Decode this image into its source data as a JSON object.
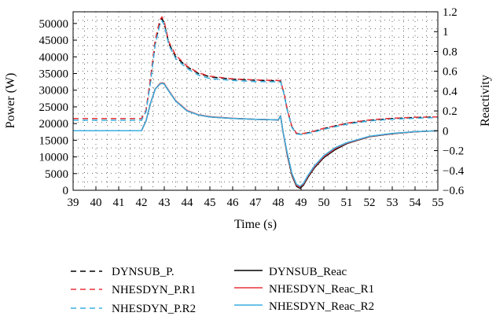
{
  "chart_data": {
    "type": "line",
    "xlabel": "Time (s)",
    "ylabel_left": "Power (W)",
    "ylabel_right": "Reactivity",
    "xlim": [
      39,
      55
    ],
    "x_ticks": [
      39,
      40,
      41,
      42,
      43,
      44,
      45,
      46,
      47,
      48,
      49,
      50,
      51,
      52,
      53,
      54,
      55
    ],
    "ylim_left": [
      0,
      53500
    ],
    "ylim_right": [
      -0.6,
      1.2
    ],
    "y_ticks_left": [
      0,
      5000,
      10000,
      15000,
      20000,
      25000,
      30000,
      35000,
      40000,
      45000,
      50000
    ],
    "y_ticks_right": [
      -0.6,
      -0.4,
      -0.2,
      0,
      0.2,
      0.4,
      0.6,
      0.8,
      1,
      1.2
    ],
    "y_tick_labels_right": [
      "−0.6",
      "−0.4",
      "−0.2",
      "0",
      "0.2",
      "0.4",
      "0.6",
      "0.8",
      "1",
      "1.2"
    ],
    "grid": "dotted",
    "legend_position": "bottom",
    "series": [
      {
        "name": "DYNSUB_P.",
        "axis": "left",
        "style": "dashed",
        "color": "#000000",
        "x": [
          39,
          42,
          42.2,
          42.4,
          42.6,
          42.8,
          42.9,
          43.0,
          43.2,
          43.5,
          44,
          44.5,
          45,
          46,
          47,
          48,
          48.1,
          48.25,
          48.4,
          48.6,
          48.8,
          49.0,
          49.5,
          50,
          51,
          52,
          53,
          54,
          55
        ],
        "y": [
          21500,
          21500,
          24000,
          33000,
          44000,
          50000,
          51500,
          50000,
          44000,
          40000,
          37000,
          35000,
          34000,
          33300,
          33000,
          32800,
          32800,
          29000,
          24000,
          19000,
          17000,
          16800,
          17500,
          18500,
          20000,
          21000,
          21500,
          21800,
          22000
        ]
      },
      {
        "name": "NHESDYN_P.R1",
        "axis": "left",
        "style": "dashed",
        "color": "#e8333a",
        "x": [
          39,
          42,
          42.2,
          42.4,
          42.6,
          42.8,
          42.9,
          43.0,
          43.2,
          43.5,
          44,
          44.5,
          45,
          46,
          47,
          48,
          48.1,
          48.25,
          48.4,
          48.6,
          48.8,
          49.0,
          49.5,
          50,
          51,
          52,
          53,
          54,
          55
        ],
        "y": [
          21500,
          21500,
          24000,
          34000,
          45000,
          51000,
          52000,
          50500,
          44500,
          40500,
          37200,
          35200,
          34200,
          33400,
          33100,
          32900,
          32900,
          29100,
          24100,
          19100,
          17100,
          16900,
          17600,
          18600,
          20100,
          21100,
          21600,
          21900,
          22000
        ]
      },
      {
        "name": "NHESDYN_P.R2",
        "axis": "left",
        "style": "dashed",
        "color": "#3aaee0",
        "x": [
          39,
          42,
          42.2,
          42.4,
          42.6,
          42.8,
          42.9,
          43.0,
          43.2,
          43.5,
          44,
          44.5,
          45,
          46,
          47,
          48,
          48.1,
          48.25,
          48.4,
          48.6,
          48.8,
          49.0,
          49.5,
          50,
          51,
          52,
          53,
          54,
          55
        ],
        "y": [
          21000,
          21000,
          23500,
          32500,
          43500,
          49500,
          50800,
          49500,
          43500,
          39500,
          36500,
          34500,
          33500,
          32900,
          32600,
          32500,
          32500,
          28800,
          23800,
          18800,
          16900,
          16700,
          17300,
          18300,
          19800,
          20800,
          21300,
          21600,
          21800
        ]
      },
      {
        "name": "DYNSUB_Reac",
        "axis": "right",
        "style": "solid",
        "color": "#000000",
        "x": [
          39,
          42,
          42.2,
          42.4,
          42.6,
          42.8,
          42.9,
          43.0,
          43.2,
          43.5,
          44,
          44.5,
          45,
          46,
          47,
          48,
          48.1,
          48.15,
          48.2,
          48.4,
          48.6,
          48.8,
          48.95,
          49.1,
          49.3,
          49.6,
          50,
          50.5,
          51,
          52,
          53,
          54,
          55
        ],
        "y": [
          0,
          0,
          0.1,
          0.28,
          0.42,
          0.47,
          0.48,
          0.47,
          0.4,
          0.3,
          0.2,
          0.16,
          0.14,
          0.125,
          0.115,
          0.11,
          0.15,
          0.08,
          0.0,
          -0.25,
          -0.45,
          -0.56,
          -0.58,
          -0.55,
          -0.47,
          -0.37,
          -0.27,
          -0.19,
          -0.13,
          -0.06,
          -0.03,
          -0.01,
          0.0
        ]
      },
      {
        "name": "NHESDYN_Reac_R1",
        "axis": "right",
        "style": "solid",
        "color": "#e8333a",
        "x": [
          39,
          42,
          42.2,
          42.4,
          42.6,
          42.8,
          42.9,
          43.0,
          43.2,
          43.5,
          44,
          44.5,
          45,
          46,
          47,
          48,
          48.1,
          48.15,
          48.2,
          48.4,
          48.6,
          48.8,
          48.95,
          49.1,
          49.3,
          49.6,
          50,
          50.5,
          51,
          52,
          53,
          54,
          55
        ],
        "y": [
          0,
          0,
          0.1,
          0.28,
          0.42,
          0.475,
          0.485,
          0.475,
          0.405,
          0.305,
          0.205,
          0.162,
          0.142,
          0.126,
          0.116,
          0.11,
          0.15,
          0.08,
          0.0,
          -0.24,
          -0.44,
          -0.55,
          -0.57,
          -0.54,
          -0.46,
          -0.36,
          -0.26,
          -0.18,
          -0.125,
          -0.058,
          -0.028,
          -0.01,
          0.0
        ]
      },
      {
        "name": "NHESDYN_Reac_R2",
        "axis": "right",
        "style": "solid",
        "color": "#3aaee0",
        "x": [
          39,
          42,
          42.2,
          42.4,
          42.6,
          42.8,
          42.9,
          43.0,
          43.2,
          43.5,
          44,
          44.5,
          45,
          46,
          47,
          48,
          48.1,
          48.15,
          48.2,
          48.4,
          48.6,
          48.8,
          48.95,
          49.1,
          49.3,
          49.6,
          50,
          50.5,
          51,
          52,
          53,
          54,
          55
        ],
        "y": [
          0,
          0,
          0.1,
          0.28,
          0.42,
          0.47,
          0.48,
          0.47,
          0.4,
          0.3,
          0.2,
          0.16,
          0.14,
          0.125,
          0.115,
          0.11,
          0.15,
          0.08,
          0.0,
          -0.23,
          -0.43,
          -0.54,
          -0.56,
          -0.53,
          -0.45,
          -0.35,
          -0.25,
          -0.17,
          -0.12,
          -0.055,
          -0.026,
          -0.009,
          0.0
        ]
      }
    ]
  }
}
